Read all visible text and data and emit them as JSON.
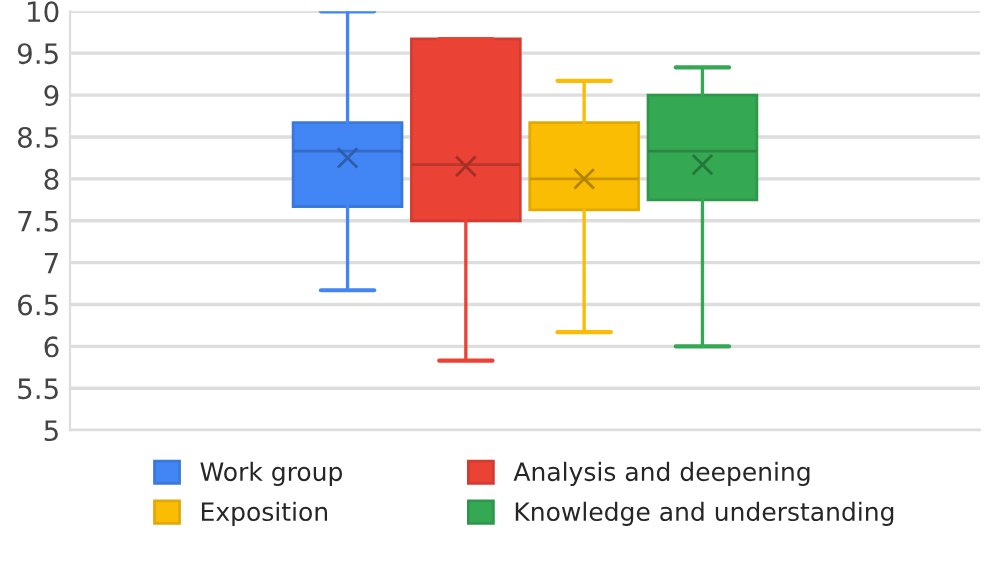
{
  "chart_data": {
    "type": "box",
    "categories": [
      null
    ],
    "series": [
      {
        "name": "Work group",
        "color": "#4285f4",
        "boxes": [
          {
            "low": 6.67,
            "q1": 7.67,
            "median": 8.33,
            "q3": 8.67,
            "high": 10,
            "mean": 8.25
          }
        ]
      },
      {
        "name": "Analysis and deepening",
        "color": "#ea4335",
        "boxes": [
          {
            "low": 5.83,
            "q1": 7.5,
            "median": 8.17,
            "q3": 9.67,
            "high": 9.67,
            "mean": 8.15
          }
        ]
      },
      {
        "name": "Exposition",
        "color": "#fbbc04",
        "boxes": [
          {
            "low": 6.17,
            "q1": 7.63,
            "median": 8.0,
            "q3": 8.67,
            "high": 9.17,
            "mean": 8.0
          }
        ]
      },
      {
        "name": "Knowledge and understanding",
        "color": "#34a853",
        "boxes": [
          {
            "low": 6.0,
            "q1": 7.75,
            "median": 8.33,
            "q3": 9.0,
            "high": 9.33,
            "mean": 8.17
          }
        ]
      }
    ],
    "ylim": [
      5,
      10
    ],
    "yticks": [
      5,
      5.5,
      6,
      6.5,
      7,
      7.5,
      8,
      8.5,
      9,
      9.5,
      10
    ],
    "grid": "y",
    "legend": "bottom",
    "marker": "cross"
  }
}
